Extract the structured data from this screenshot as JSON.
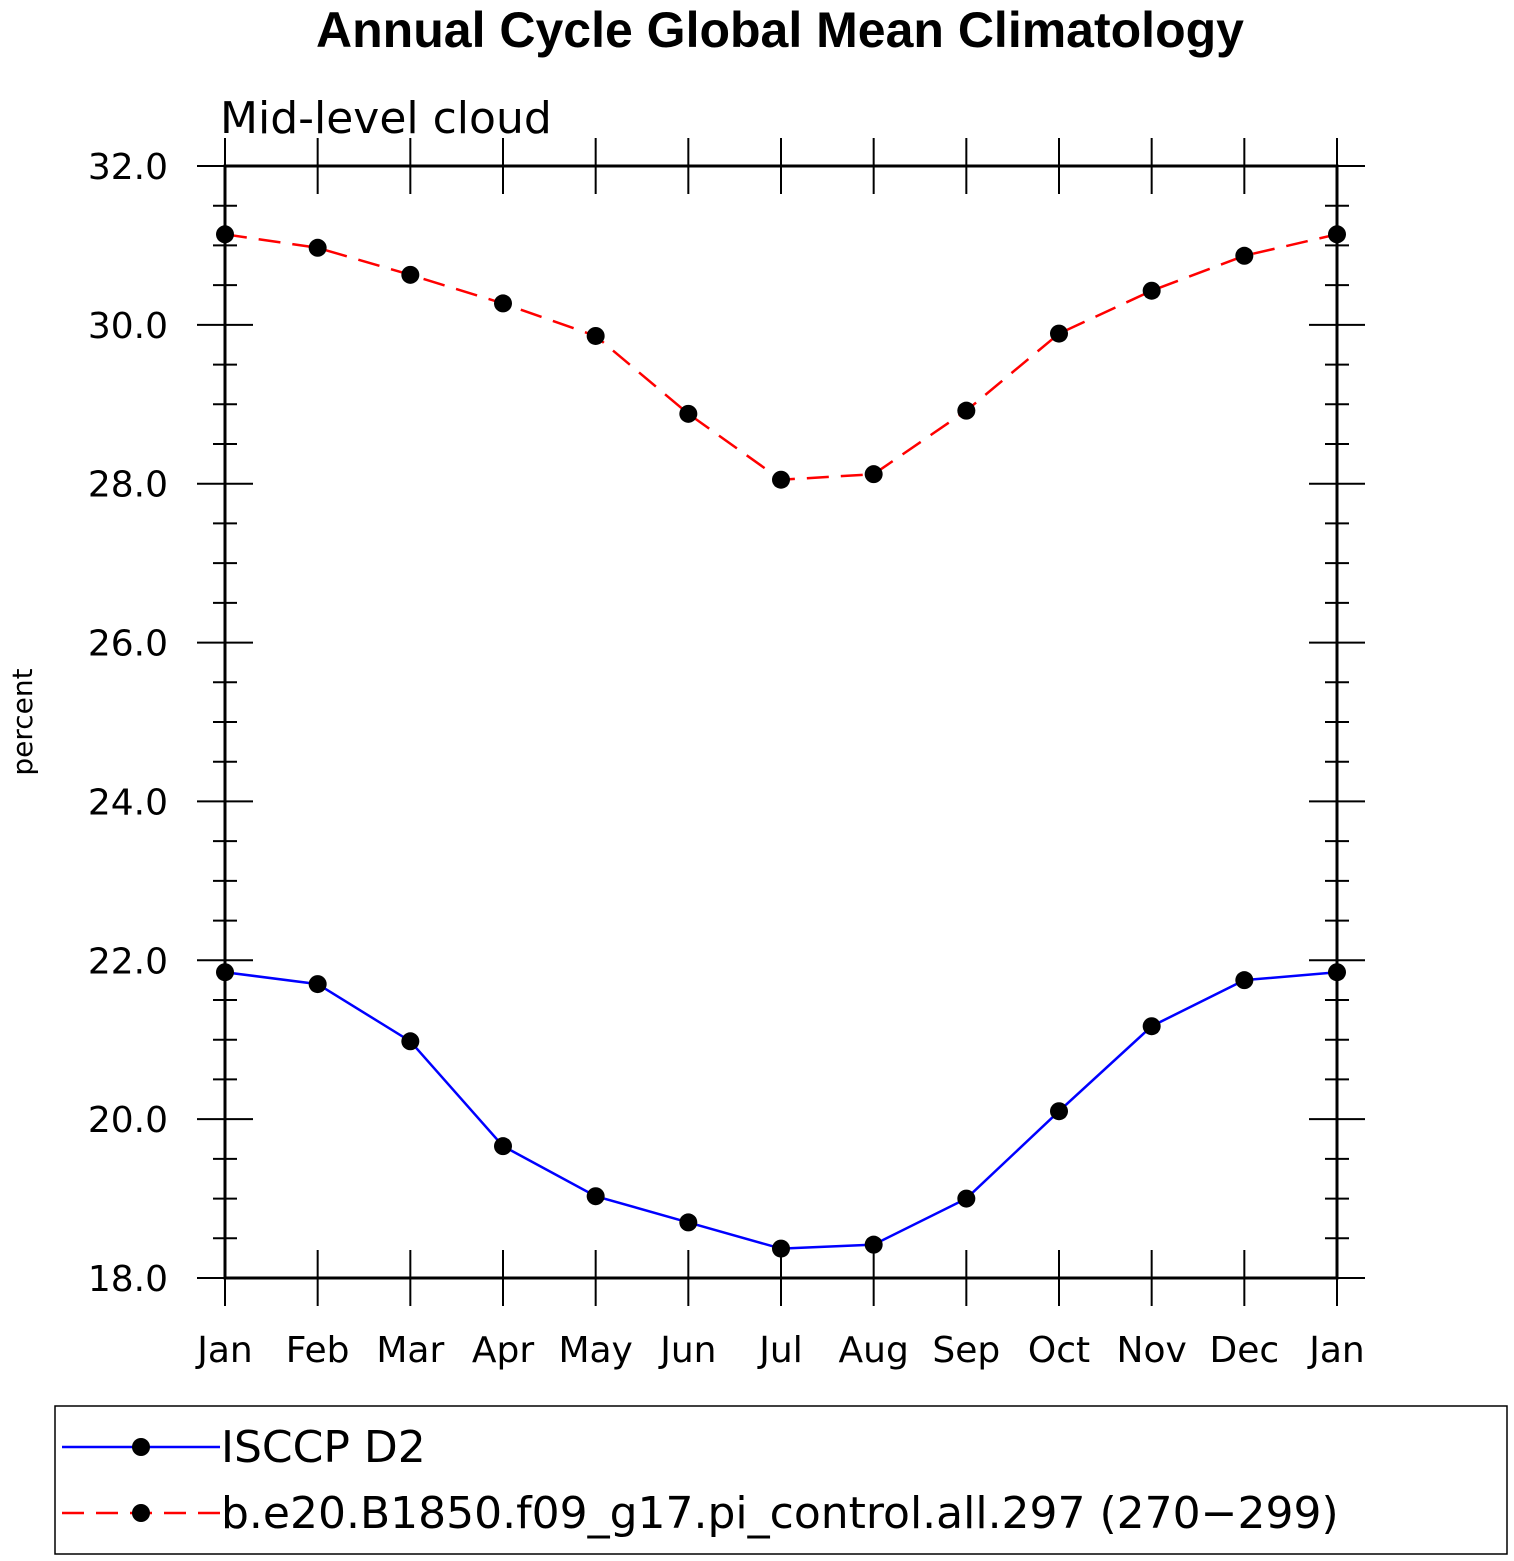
{
  "chart_data": {
    "type": "line",
    "title": "Annual Cycle Global Mean Climatology",
    "subtitle": "Mid-level cloud",
    "ylabel": "percent",
    "xlabel": "",
    "categories": [
      "Jan",
      "Feb",
      "Mar",
      "Apr",
      "May",
      "Jun",
      "Jul",
      "Aug",
      "Sep",
      "Oct",
      "Nov",
      "Dec",
      "Jan"
    ],
    "ylim": [
      18.0,
      32.0
    ],
    "yticks": [
      "18.0",
      "20.0",
      "22.0",
      "24.0",
      "26.0",
      "28.0",
      "30.0",
      "32.0"
    ],
    "grid": false,
    "legend_placement": "bottom",
    "series": [
      {
        "name": "ISCCP D2",
        "color": "#0000ff",
        "dash": "solid",
        "marker": "dot",
        "values": [
          21.85,
          21.7,
          20.98,
          19.66,
          19.03,
          18.7,
          18.37,
          18.42,
          19.0,
          20.1,
          21.17,
          21.75,
          21.85
        ]
      },
      {
        "name": "b.e20.B1850.f09_g17.pi_control.all.297 (270−299)",
        "color": "#ff0000",
        "dash": "dashed",
        "marker": "dot",
        "values": [
          31.14,
          30.97,
          30.63,
          30.27,
          29.86,
          28.88,
          28.05,
          28.12,
          28.92,
          29.89,
          30.43,
          30.87,
          31.14
        ]
      }
    ]
  }
}
